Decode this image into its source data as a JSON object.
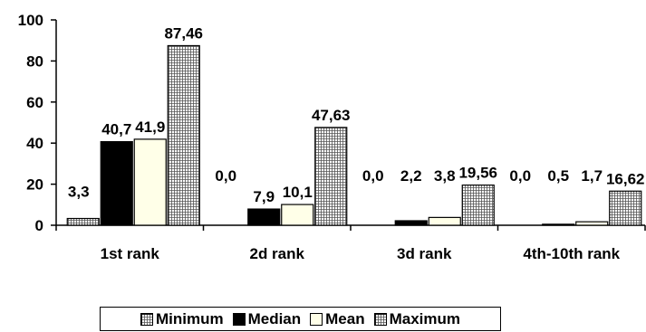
{
  "chart_data": {
    "type": "bar",
    "categories": [
      "1st rank",
      "2d rank",
      "3d rank",
      "4th-10th rank"
    ],
    "ylim": [
      0,
      100
    ],
    "yticks": [
      0,
      20,
      40,
      60,
      80,
      100
    ],
    "grid": false,
    "legend_position": "bottom",
    "series": [
      {
        "name": "Minimum",
        "pattern": "grid",
        "color": "#ffffff",
        "values": [
          3.3,
          0.0,
          0.0,
          0.0
        ],
        "labels": [
          "3,3",
          "0,0",
          "0,0",
          "0,0"
        ]
      },
      {
        "name": "Median",
        "pattern": "solid",
        "color": "#000000",
        "values": [
          40.7,
          7.9,
          2.2,
          0.5
        ],
        "labels": [
          "40,7",
          "7,9",
          "2,2",
          "0,5"
        ]
      },
      {
        "name": "Mean",
        "pattern": "solid",
        "color": "#ffffe8",
        "values": [
          41.9,
          10.1,
          3.8,
          1.7
        ],
        "labels": [
          "41,9",
          "10,1",
          "3,8",
          "1,7"
        ]
      },
      {
        "name": "Maximum",
        "pattern": "grid",
        "color": "#ffffff",
        "values": [
          87.46,
          47.63,
          19.56,
          16.62
        ],
        "labels": [
          "87,46",
          "47,63",
          "19,56",
          "16,62"
        ]
      }
    ]
  }
}
